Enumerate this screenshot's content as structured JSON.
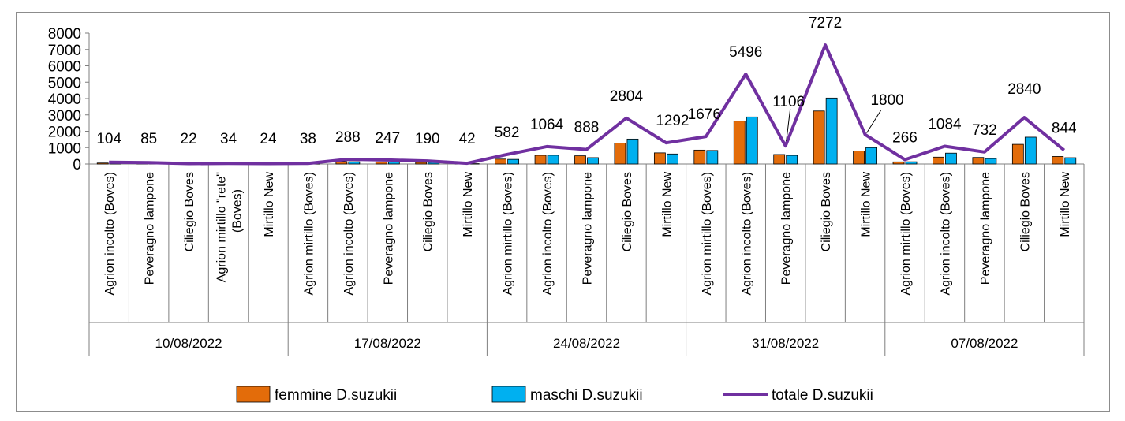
{
  "chart_data": {
    "type": "bar",
    "ylim": [
      0,
      8000
    ],
    "yticks": [
      "8000",
      "7000",
      "6000",
      "5000",
      "4000",
      "3000",
      "2000",
      "1000",
      "0"
    ],
    "grid": false,
    "legend_position": "bottom",
    "groups": [
      {
        "label": "10/08/2022",
        "categories": [
          "Agrion incolto (Boves)",
          "Peveragno lampone",
          "Ciliegio Boves",
          "Agrion mirtillo \"rete\" (Boves)",
          "Mirtillo New"
        ]
      },
      {
        "label": "17/08/2022",
        "categories": [
          "Agrion mirtillo (Boves)",
          "Agrion incolto (Boves)",
          "Peveragno lampone",
          "Ciliegio Boves",
          "Mirtillo New"
        ]
      },
      {
        "label": "24/08/2022",
        "categories": [
          "Agrion mirtillo (Boves)",
          "Agrion incolto (Boves)",
          "Peveragno lampone",
          "Ciliegio Boves",
          "Mirtillo New"
        ]
      },
      {
        "label": "31/08/2022",
        "categories": [
          "Agrion mirtillo (Boves)",
          "Agrion incolto (Boves)",
          "Peveragno lampone",
          "Ciliegio Boves",
          "Mirtillo New"
        ]
      },
      {
        "label": "07/08/2022",
        "categories": [
          "Agrion mirtillo (Boves)",
          "Agrion incolto (Boves)",
          "Peveragno lampone",
          "Ciliegio Boves",
          "Mirtillo New"
        ]
      }
    ],
    "series": [
      {
        "name": "femmine D.suzukii",
        "type": "bar",
        "color": "#E36C0A",
        "values": [
          60,
          45,
          12,
          18,
          13,
          20,
          150,
          130,
          100,
          22,
          300,
          530,
          500,
          1280,
          680,
          850,
          2620,
          580,
          3240,
          800,
          130,
          420,
          400,
          1200,
          460
        ]
      },
      {
        "name": "maschi D.suzukii",
        "type": "bar",
        "color": "#00B0F0",
        "values": [
          44,
          40,
          10,
          16,
          11,
          18,
          138,
          117,
          90,
          20,
          282,
          534,
          388,
          1524,
          612,
          826,
          2876,
          526,
          4032,
          1000,
          136,
          664,
          332,
          1640,
          384
        ]
      },
      {
        "name": "totale D.suzukii",
        "type": "line",
        "color": "#7030A0",
        "values": [
          104,
          85,
          22,
          34,
          24,
          38,
          288,
          247,
          190,
          42,
          582,
          1064,
          888,
          2804,
          1292,
          1676,
          5496,
          1106,
          7272,
          1800,
          266,
          1084,
          732,
          2840,
          844
        ]
      }
    ],
    "data_labels": [
      "104",
      "85",
      "22",
      "34",
      "24",
      "38",
      "288",
      "247",
      "190",
      "42",
      "582",
      "1064",
      "888",
      "2804",
      "1292",
      "1676",
      "5496",
      "1106",
      "7272",
      "1800",
      "266",
      "1084",
      "732",
      "2840",
      "844"
    ]
  }
}
